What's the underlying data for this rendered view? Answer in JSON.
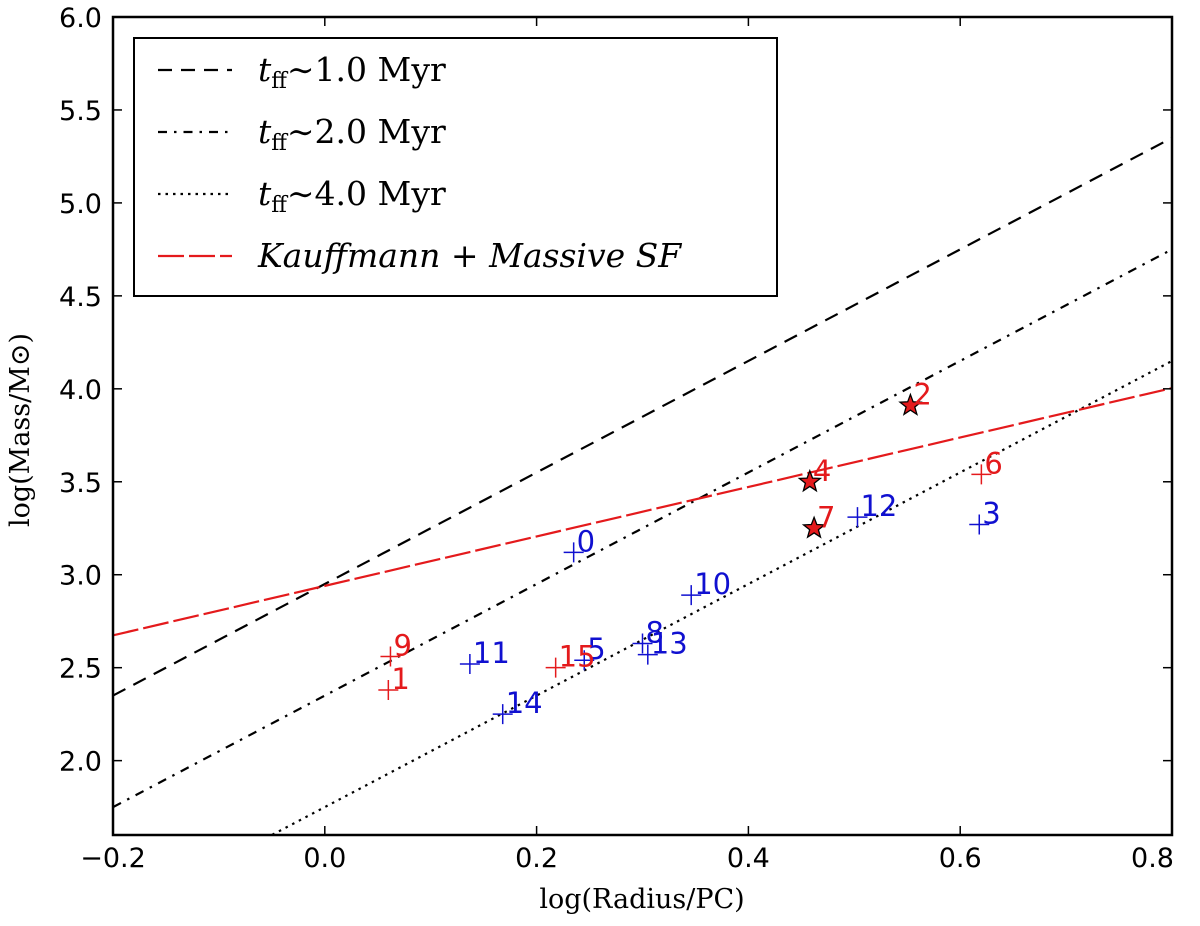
{
  "chart_data": {
    "type": "scatter",
    "title": "",
    "xlabel": "log(Radius/PC)",
    "ylabel": "log(Mass/M⊙)",
    "xlim": [
      -0.2,
      0.8
    ],
    "ylim": [
      1.6,
      6.0
    ],
    "x_ticks": [
      "−0.2",
      "0.0",
      "0.2",
      "0.4",
      "0.6",
      "0.8"
    ],
    "y_ticks": [
      "2.0",
      "2.5",
      "3.0",
      "3.5",
      "4.0",
      "4.5",
      "5.0",
      "5.5",
      "6.0"
    ],
    "grid": false,
    "legend_position": "top-left",
    "colors": {
      "red": "#e41a1c",
      "blue": "#1010d0",
      "black": "#000000"
    },
    "lines": [
      {
        "name": "t_ff ~ 1.0 Myr",
        "label_main": "t",
        "label_sub": "ff",
        "label_rest": "∼1.0  Myr",
        "style": "dashed",
        "color": "#000000",
        "intercept": 2.95,
        "slope": 3.0
      },
      {
        "name": "t_ff ~ 2.0 Myr",
        "label_main": "t",
        "label_sub": "ff",
        "label_rest": "∼2.0  Myr",
        "style": "dashdot",
        "color": "#000000",
        "intercept": 2.35,
        "slope": 3.0
      },
      {
        "name": "t_ff ~ 4.0 Myr",
        "label_main": "t",
        "label_sub": "ff",
        "label_rest": "∼4.0  Myr",
        "style": "dotted",
        "color": "#000000",
        "intercept": 1.75,
        "slope": 3.0
      },
      {
        "name": "Kauffmann + Massive SF",
        "label_main": "Kauffmann + Massive  SF",
        "label_sub": "",
        "label_rest": "",
        "style": "longdash",
        "color": "#e41a1c",
        "intercept": 2.94,
        "slope": 1.33
      }
    ],
    "points": [
      {
        "label": "0",
        "x": 0.235,
        "y": 3.12,
        "marker": "plus",
        "color": "blue"
      },
      {
        "label": "1",
        "x": 0.06,
        "y": 2.38,
        "marker": "plus",
        "color": "red"
      },
      {
        "label": "2",
        "x": 0.553,
        "y": 3.91,
        "marker": "star",
        "color": "red"
      },
      {
        "label": "3",
        "x": 0.618,
        "y": 3.27,
        "marker": "plus",
        "color": "blue"
      },
      {
        "label": "4",
        "x": 0.458,
        "y": 3.5,
        "marker": "star",
        "color": "red"
      },
      {
        "label": "5",
        "x": 0.245,
        "y": 2.54,
        "marker": "plus",
        "color": "blue"
      },
      {
        "label": "6",
        "x": 0.62,
        "y": 3.54,
        "marker": "plus",
        "color": "red"
      },
      {
        "label": "7",
        "x": 0.462,
        "y": 3.25,
        "marker": "star",
        "color": "red"
      },
      {
        "label": "8",
        "x": 0.3,
        "y": 2.63,
        "marker": "plus",
        "color": "blue"
      },
      {
        "label": "9",
        "x": 0.062,
        "y": 2.56,
        "marker": "plus",
        "color": "red"
      },
      {
        "label": "10",
        "x": 0.346,
        "y": 2.89,
        "marker": "plus",
        "color": "blue"
      },
      {
        "label": "11",
        "x": 0.137,
        "y": 2.52,
        "marker": "plus",
        "color": "blue"
      },
      {
        "label": "12",
        "x": 0.503,
        "y": 3.31,
        "marker": "plus",
        "color": "blue"
      },
      {
        "label": "13",
        "x": 0.305,
        "y": 2.57,
        "marker": "plus",
        "color": "blue"
      },
      {
        "label": "14",
        "x": 0.168,
        "y": 2.25,
        "marker": "plus",
        "color": "blue"
      },
      {
        "label": "15",
        "x": 0.218,
        "y": 2.5,
        "marker": "plus",
        "color": "red"
      }
    ]
  }
}
